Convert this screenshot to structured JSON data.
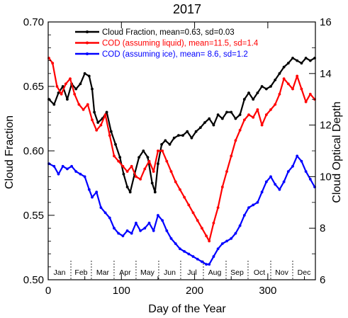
{
  "chart_data": {
    "type": "line",
    "title": "2017",
    "xlabel": "Day of the Year",
    "ylabel_left": "Cloud Fraction",
    "ylabel_right": "Cloud Optical Depth",
    "xlim": [
      0,
      365
    ],
    "ylim_left": [
      0.5,
      0.7
    ],
    "ylim_right": [
      6,
      16
    ],
    "x_ticks": [
      0,
      100,
      200,
      300
    ],
    "y_ticks_left": [
      "0.50",
      "0.55",
      "0.60",
      "0.65",
      "0.70"
    ],
    "y_ticks_right": [
      "6",
      "8",
      "10",
      "12",
      "14",
      "16"
    ],
    "months": [
      "Jan",
      "Feb",
      "Mar",
      "Apr",
      "May",
      "Jun",
      "Jul",
      "Aug",
      "Sep",
      "Oct",
      "Nov",
      "Dec"
    ],
    "month_starts": [
      0,
      31,
      59,
      90,
      120,
      151,
      181,
      212,
      243,
      273,
      304,
      334,
      365
    ],
    "legend_position": "top",
    "series": [
      {
        "name": "Cloud Fraction, mean=0.63, sd=0.03",
        "color": "#000000",
        "axis": "left",
        "points": [
          [
            1,
            0.64
          ],
          [
            8,
            0.636
          ],
          [
            14,
            0.645
          ],
          [
            20,
            0.65
          ],
          [
            26,
            0.64
          ],
          [
            32,
            0.652
          ],
          [
            38,
            0.648
          ],
          [
            44,
            0.652
          ],
          [
            50,
            0.66
          ],
          [
            56,
            0.658
          ],
          [
            60,
            0.648
          ],
          [
            63,
            0.63
          ],
          [
            68,
            0.622
          ],
          [
            74,
            0.625
          ],
          [
            80,
            0.63
          ],
          [
            86,
            0.615
          ],
          [
            92,
            0.605
          ],
          [
            98,
            0.595
          ],
          [
            103,
            0.582
          ],
          [
            108,
            0.572
          ],
          [
            112,
            0.568
          ],
          [
            118,
            0.582
          ],
          [
            124,
            0.595
          ],
          [
            130,
            0.6
          ],
          [
            136,
            0.595
          ],
          [
            142,
            0.575
          ],
          [
            146,
            0.568
          ],
          [
            150,
            0.59
          ],
          [
            155,
            0.605
          ],
          [
            160,
            0.608
          ],
          [
            166,
            0.605
          ],
          [
            172,
            0.61
          ],
          [
            178,
            0.612
          ],
          [
            184,
            0.612
          ],
          [
            190,
            0.615
          ],
          [
            196,
            0.61
          ],
          [
            202,
            0.615
          ],
          [
            208,
            0.618
          ],
          [
            214,
            0.622
          ],
          [
            220,
            0.625
          ],
          [
            226,
            0.62
          ],
          [
            232,
            0.628
          ],
          [
            238,
            0.625
          ],
          [
            244,
            0.63
          ],
          [
            250,
            0.63
          ],
          [
            256,
            0.625
          ],
          [
            262,
            0.628
          ],
          [
            268,
            0.64
          ],
          [
            274,
            0.645
          ],
          [
            280,
            0.64
          ],
          [
            286,
            0.645
          ],
          [
            292,
            0.65
          ],
          [
            298,
            0.648
          ],
          [
            304,
            0.65
          ],
          [
            310,
            0.655
          ],
          [
            316,
            0.66
          ],
          [
            322,
            0.665
          ],
          [
            328,
            0.668
          ],
          [
            334,
            0.672
          ],
          [
            340,
            0.67
          ],
          [
            346,
            0.668
          ],
          [
            352,
            0.672
          ],
          [
            358,
            0.67
          ],
          [
            364,
            0.672
          ]
        ]
      },
      {
        "name": "COD (assuming liquid), mean=11.5, sd=1.4",
        "color": "#ff0000",
        "axis": "right",
        "points": [
          [
            1,
            14.6
          ],
          [
            6,
            14.4
          ],
          [
            12,
            13.5
          ],
          [
            18,
            13.2
          ],
          [
            24,
            13.6
          ],
          [
            30,
            13.8
          ],
          [
            36,
            13.2
          ],
          [
            42,
            12.8
          ],
          [
            48,
            12.6
          ],
          [
            54,
            12.8
          ],
          [
            60,
            12.2
          ],
          [
            66,
            11.8
          ],
          [
            72,
            12.0
          ],
          [
            78,
            12.4
          ],
          [
            84,
            11.6
          ],
          [
            90,
            10.8
          ],
          [
            96,
            10.6
          ],
          [
            102,
            10.4
          ],
          [
            108,
            10.2
          ],
          [
            114,
            10.4
          ],
          [
            120,
            10.0
          ],
          [
            126,
            9.9
          ],
          [
            132,
            10.3
          ],
          [
            138,
            10.6
          ],
          [
            144,
            10.2
          ],
          [
            150,
            11.0
          ],
          [
            156,
            11.0
          ],
          [
            162,
            10.6
          ],
          [
            168,
            10.2
          ],
          [
            174,
            9.8
          ],
          [
            180,
            9.5
          ],
          [
            186,
            9.2
          ],
          [
            192,
            8.9
          ],
          [
            198,
            8.6
          ],
          [
            204,
            8.3
          ],
          [
            210,
            8.0
          ],
          [
            216,
            7.7
          ],
          [
            220,
            7.5
          ],
          [
            226,
            8.2
          ],
          [
            232,
            8.8
          ],
          [
            238,
            9.6
          ],
          [
            244,
            10.2
          ],
          [
            250,
            10.8
          ],
          [
            256,
            11.4
          ],
          [
            262,
            11.8
          ],
          [
            268,
            12.2
          ],
          [
            274,
            12.4
          ],
          [
            280,
            12.3
          ],
          [
            286,
            12.6
          ],
          [
            292,
            12.0
          ],
          [
            298,
            12.4
          ],
          [
            304,
            12.6
          ],
          [
            310,
            12.8
          ],
          [
            316,
            13.2
          ],
          [
            322,
            13.8
          ],
          [
            328,
            13.6
          ],
          [
            334,
            13.4
          ],
          [
            340,
            13.9
          ],
          [
            346,
            13.4
          ],
          [
            352,
            12.9
          ],
          [
            358,
            13.2
          ],
          [
            364,
            13.0
          ]
        ]
      },
      {
        "name": "COD (assuming ice), mean= 8.6, sd=1.2",
        "color": "#0000ff",
        "axis": "right",
        "points": [
          [
            1,
            10.5
          ],
          [
            8,
            10.4
          ],
          [
            14,
            10.1
          ],
          [
            20,
            10.4
          ],
          [
            26,
            10.3
          ],
          [
            32,
            10.4
          ],
          [
            38,
            10.2
          ],
          [
            44,
            10.1
          ],
          [
            50,
            10.0
          ],
          [
            56,
            9.5
          ],
          [
            60,
            9.2
          ],
          [
            66,
            9.4
          ],
          [
            72,
            8.8
          ],
          [
            78,
            8.6
          ],
          [
            84,
            8.4
          ],
          [
            90,
            8.0
          ],
          [
            96,
            7.8
          ],
          [
            102,
            7.7
          ],
          [
            108,
            7.9
          ],
          [
            114,
            7.8
          ],
          [
            120,
            8.2
          ],
          [
            126,
            7.9
          ],
          [
            132,
            8.0
          ],
          [
            138,
            8.2
          ],
          [
            144,
            7.9
          ],
          [
            150,
            8.5
          ],
          [
            156,
            8.3
          ],
          [
            162,
            7.9
          ],
          [
            168,
            7.6
          ],
          [
            174,
            7.4
          ],
          [
            180,
            7.2
          ],
          [
            186,
            7.1
          ],
          [
            192,
            7.0
          ],
          [
            198,
            6.9
          ],
          [
            204,
            6.8
          ],
          [
            210,
            6.7
          ],
          [
            216,
            6.6
          ],
          [
            220,
            6.6
          ],
          [
            226,
            6.9
          ],
          [
            232,
            7.2
          ],
          [
            238,
            7.4
          ],
          [
            244,
            7.5
          ],
          [
            250,
            7.6
          ],
          [
            256,
            7.8
          ],
          [
            262,
            8.1
          ],
          [
            268,
            8.5
          ],
          [
            274,
            8.8
          ],
          [
            280,
            8.9
          ],
          [
            286,
            9.0
          ],
          [
            292,
            9.4
          ],
          [
            298,
            9.8
          ],
          [
            304,
            10.0
          ],
          [
            310,
            9.7
          ],
          [
            316,
            9.5
          ],
          [
            322,
            9.8
          ],
          [
            328,
            10.2
          ],
          [
            334,
            10.4
          ],
          [
            340,
            10.8
          ],
          [
            346,
            10.6
          ],
          [
            352,
            10.2
          ],
          [
            358,
            9.9
          ],
          [
            364,
            9.6
          ]
        ]
      }
    ]
  }
}
